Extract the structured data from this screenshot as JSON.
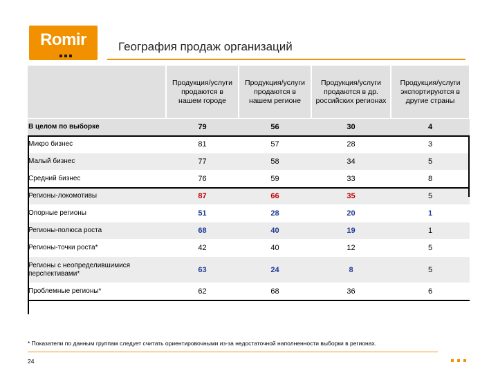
{
  "logo": {
    "text": "Romir"
  },
  "title": "География продаж организаций",
  "table": {
    "headers": [
      "",
      "Продукция/услуги продаются в нашем городе",
      "Продукция/услуги продаются в нашем регионе",
      "Продукция/услуги продаются в др. российских регионах",
      "Продукция/услуги экспортируются в другие страны"
    ],
    "rows": [
      {
        "label": "В целом по выборке",
        "values": [
          "79",
          "56",
          "30",
          "4"
        ],
        "colors": [
          "",
          "",
          "",
          ""
        ]
      },
      {
        "label": "Микро бизнес",
        "values": [
          "81",
          "57",
          "28",
          "3"
        ],
        "colors": [
          "",
          "",
          "",
          ""
        ]
      },
      {
        "label": "Малый бизнес",
        "values": [
          "77",
          "58",
          "34",
          "5"
        ],
        "colors": [
          "",
          "",
          "",
          ""
        ]
      },
      {
        "label": "Средний бизнес",
        "values": [
          "76",
          "59",
          "33",
          "8"
        ],
        "colors": [
          "",
          "",
          "",
          ""
        ]
      },
      {
        "label": "Регионы-локомотивы",
        "values": [
          "87",
          "66",
          "35",
          "5"
        ],
        "colors": [
          "red",
          "red",
          "red",
          ""
        ]
      },
      {
        "label": "Опорные регионы",
        "values": [
          "51",
          "28",
          "20",
          "1"
        ],
        "colors": [
          "blue",
          "blue",
          "blue",
          "blue"
        ]
      },
      {
        "label": "Регионы-полюса роста",
        "values": [
          "68",
          "40",
          "19",
          "1"
        ],
        "colors": [
          "blue",
          "blue",
          "blue",
          ""
        ]
      },
      {
        "label": "Регионы-точки роста*",
        "values": [
          "42",
          "40",
          "12",
          "5"
        ],
        "colors": [
          "",
          "",
          "",
          ""
        ]
      },
      {
        "label": "Регионы с неопределившимися перспективами*",
        "values": [
          "63",
          "24",
          "8",
          "5"
        ],
        "colors": [
          "blue",
          "blue",
          "blue",
          ""
        ]
      },
      {
        "label": "Проблемные регионы*",
        "values": [
          "62",
          "68",
          "36",
          "6"
        ],
        "colors": [
          "",
          "",
          "",
          ""
        ]
      }
    ]
  },
  "footnote": "* Показатели по данным группам следует считать ориентировочными из-за недостаточной наполненности выборки в регионах.",
  "page_number": "24",
  "colors": {
    "accent": "#f29100",
    "highlight_red": "#c00000",
    "highlight_blue": "#1f3a93",
    "header_bg": "#e0e0e0"
  }
}
